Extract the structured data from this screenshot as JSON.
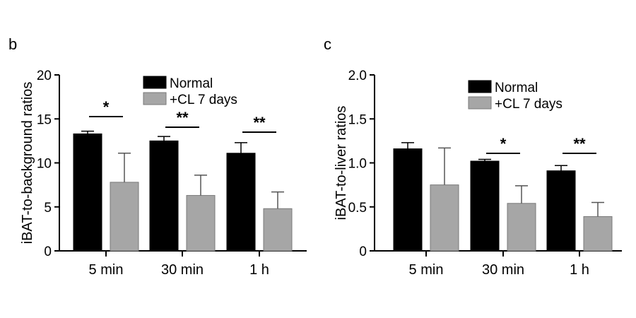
{
  "chart_data": [
    {
      "panel_label": "b",
      "type": "bar",
      "categories": [
        "5 min",
        "30 min",
        "1 h"
      ],
      "series": [
        {
          "name": "Normal",
          "values": [
            13.3,
            12.5,
            11.1
          ],
          "errors": [
            0.3,
            0.5,
            1.2
          ],
          "color": "#000000"
        },
        {
          "name": "+CL 7 days",
          "values": [
            7.8,
            6.3,
            4.8
          ],
          "errors": [
            3.3,
            2.3,
            1.9
          ],
          "color": "#a6a6a6"
        }
      ],
      "title": "",
      "xlabel": "",
      "ylabel": "iBAT-to-background ratios",
      "ylim": [
        0,
        20
      ],
      "yticks": [
        0,
        5,
        10,
        15,
        20
      ],
      "ytick_labels": [
        "0",
        "5",
        "10",
        "15",
        "20"
      ],
      "significance": [
        "*",
        "**",
        "**"
      ],
      "legend_position": "top-right",
      "grid": false
    },
    {
      "panel_label": "c",
      "type": "bar",
      "categories": [
        "5 min",
        "30 min",
        "1 h"
      ],
      "series": [
        {
          "name": "Normal",
          "values": [
            1.16,
            1.02,
            0.91
          ],
          "errors": [
            0.07,
            0.02,
            0.06
          ],
          "color": "#000000"
        },
        {
          "name": "+CL 7 days",
          "values": [
            0.75,
            0.54,
            0.39
          ],
          "errors": [
            0.42,
            0.2,
            0.16
          ],
          "color": "#a6a6a6"
        }
      ],
      "title": "",
      "xlabel": "",
      "ylabel": "iBAT-to-liver ratios",
      "ylim": [
        0,
        2.0
      ],
      "yticks": [
        0,
        0.5,
        1.0,
        1.5,
        2.0
      ],
      "ytick_labels": [
        "0",
        "0.5",
        "1.0",
        "1.5",
        "2.0"
      ],
      "significance": [
        "",
        "*",
        "**"
      ],
      "legend_position": "top-right",
      "grid": false
    }
  ]
}
